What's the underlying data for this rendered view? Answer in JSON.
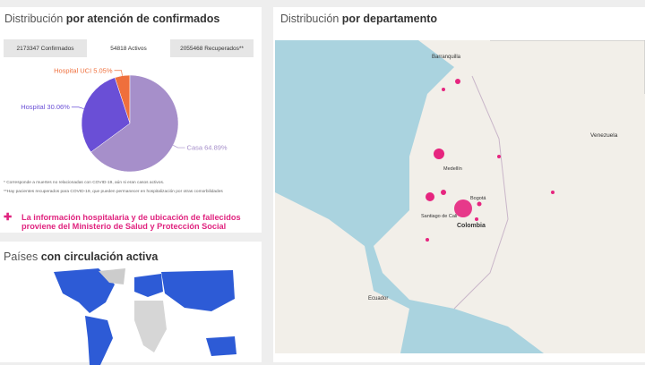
{
  "left_panel": {
    "title_light": "Distribución",
    "title_bold": "por atención de confirmados",
    "tabs": [
      "2173347 Confirmados",
      "54818 Activos",
      "2055468 Recuperados**"
    ],
    "notes": [
      "* Corresponde a muertes no relacionadas con COVID-19, aún si eran casos activos.",
      "**Hay pacientes recuperados para COVID-19, que pueden permanecer en hospitalización por otras comorbilidades"
    ],
    "alert": [
      "La información hospitalaria y de ubicación de fallecidos",
      "proviene del Ministerio de Salud y Protección Social"
    ]
  },
  "chart_data": {
    "type": "pie",
    "categories": [
      "Hospital UCI",
      "Hospital",
      "Casa"
    ],
    "values": [
      5.05,
      30.06,
      64.89
    ],
    "value_labels": [
      "Hospital UCI 5.05%",
      "Hospital 30.06%",
      "Casa 64.89%"
    ],
    "colors": [
      "#ef6f3c",
      "#6a4fd6",
      "#a68fca"
    ]
  },
  "countries_panel": {
    "title_light": "Países",
    "title_bold": "con circulación activa"
  },
  "map_panel": {
    "title_light": "Distribución",
    "title_bold": "por departamento",
    "labels": [
      "Barranquilla",
      "Venezuela",
      "Medellín",
      "Bogotá",
      "Santiago de Cali",
      "Colombia",
      "Ecuador"
    ]
  }
}
